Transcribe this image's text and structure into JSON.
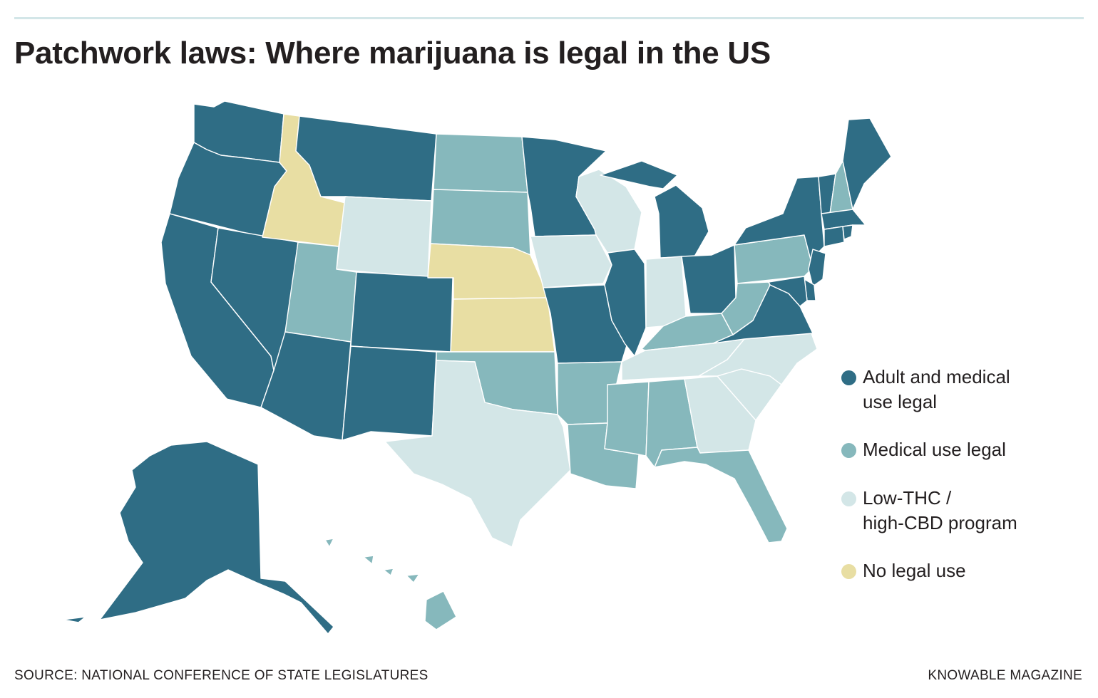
{
  "header": {
    "title": "Patchwork laws: Where marijuana is legal in the US"
  },
  "colors": {
    "adult": "#2f6d85",
    "medical": "#86b8bc",
    "lowthc": "#d3e6e7",
    "none": "#e8dea3",
    "rule": "#d3e6e8"
  },
  "legend": [
    {
      "key": "adult",
      "lines": [
        "Adult and medical",
        "use legal"
      ]
    },
    {
      "key": "medical",
      "lines": [
        "Medical use legal"
      ]
    },
    {
      "key": "lowthc",
      "lines": [
        "Low-THC /",
        "high-CBD program"
      ]
    },
    {
      "key": "none",
      "lines": [
        "No legal use"
      ]
    }
  ],
  "map": {
    "states": {
      "WA": "adult",
      "OR": "adult",
      "CA": "adult",
      "NV": "adult",
      "ID": "none",
      "MT": "adult",
      "WY": "lowthc",
      "UT": "medical",
      "AZ": "adult",
      "CO": "adult",
      "NM": "adult",
      "ND": "medical",
      "SD": "medical",
      "NE": "none",
      "KS": "none",
      "OK": "medical",
      "TX": "lowthc",
      "MN": "adult",
      "IA": "lowthc",
      "MO": "adult",
      "AR": "medical",
      "LA": "medical",
      "WI": "lowthc",
      "IL": "adult",
      "MI": "adult",
      "IN": "lowthc",
      "OH": "adult",
      "KY": "medical",
      "TN": "lowthc",
      "MS": "medical",
      "AL": "medical",
      "GA": "lowthc",
      "FL": "medical",
      "SC": "lowthc",
      "NC": "lowthc",
      "VA": "adult",
      "WV": "medical",
      "PA": "medical",
      "NY": "adult",
      "VT": "adult",
      "NH": "medical",
      "ME": "adult",
      "MA": "adult",
      "CT": "adult",
      "RI": "adult",
      "NJ": "adult",
      "DE": "adult",
      "MD": "adult",
      "AK": "adult",
      "HI": "medical"
    }
  },
  "footer": {
    "source": "SOURCE: NATIONAL CONFERENCE OF STATE LEGISLATURES",
    "credit": "KNOWABLE MAGAZINE"
  }
}
